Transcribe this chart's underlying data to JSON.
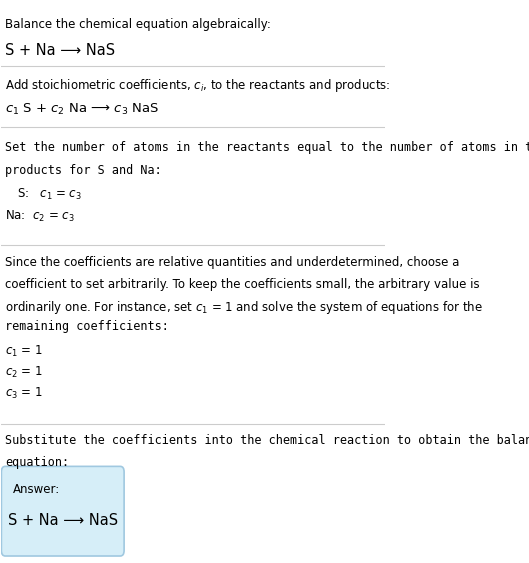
{
  "title_line1": "Balance the chemical equation algebraically:",
  "title_line2": "S + Na ⟶ NaS",
  "section2_intro": "Add stoichiometric coefficients, $c_i$, to the reactants and products:",
  "section2_eq": "$c_1$ S + $c_2$ Na ⟶ $c_3$ NaS",
  "section3_intro": "Set the number of atoms in the reactants equal to the number of atoms in the",
  "section3_intro2": "products for S and Na:",
  "section3_S": "S:   $c_1$ = $c_3$",
  "section3_Na": "Na:  $c_2$ = $c_3$",
  "section4_intro1": "Since the coefficients are relative quantities and underdetermined, choose a",
  "section4_intro2": "coefficient to set arbitrarily. To keep the coefficients small, the arbitrary value is",
  "section4_intro3": "ordinarily one. For instance, set $c_1$ = 1 and solve the system of equations for the",
  "section4_intro4": "remaining coefficients:",
  "section4_c1": "$c_1$ = 1",
  "section4_c2": "$c_2$ = 1",
  "section4_c3": "$c_3$ = 1",
  "section5_intro1": "Substitute the coefficients into the chemical reaction to obtain the balanced",
  "section5_intro2": "equation:",
  "answer_label": "Answer:",
  "answer_eq": "S + Na ⟶ NaS",
  "bg_color": "#ffffff",
  "text_color": "#000000",
  "line_color": "#cccccc",
  "answer_box_color": "#d6eef8",
  "answer_box_border": "#a0c8e0"
}
